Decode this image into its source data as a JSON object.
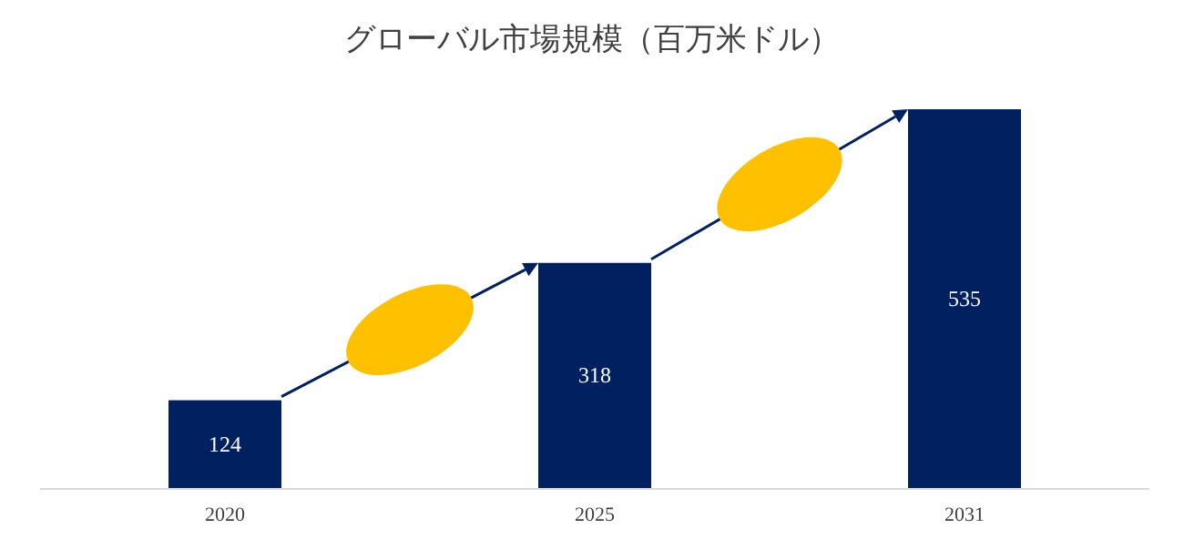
{
  "chart_data": {
    "type": "bar",
    "title": "グローバル市場規模（百万米ドル）",
    "categories": [
      "2020",
      "2025",
      "2031"
    ],
    "values": [
      124,
      318,
      535
    ],
    "color": "#002060",
    "data_labels": true
  }
}
